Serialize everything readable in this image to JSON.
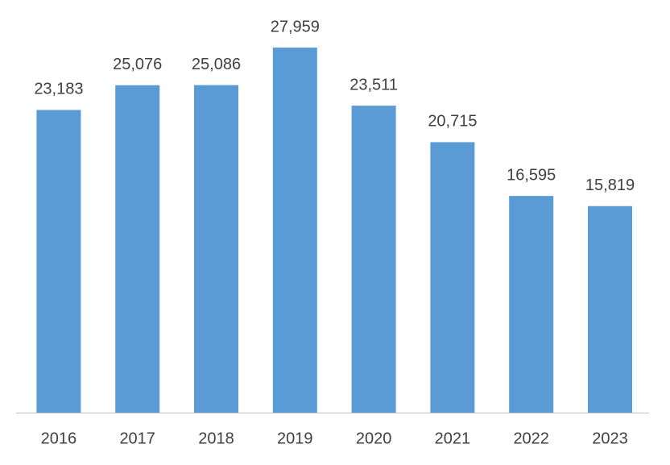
{
  "chart_data": {
    "type": "bar",
    "categories": [
      "2016",
      "2017",
      "2018",
      "2019",
      "2020",
      "2021",
      "2022",
      "2023"
    ],
    "values": [
      23183,
      25076,
      25086,
      27959,
      23511,
      20715,
      16595,
      15819
    ],
    "value_labels": [
      "23,183",
      "25,076",
      "25,086",
      "27,959",
      "23,511",
      "20,715",
      "16,595",
      "15,819"
    ],
    "color": "#5b9bd5"
  }
}
